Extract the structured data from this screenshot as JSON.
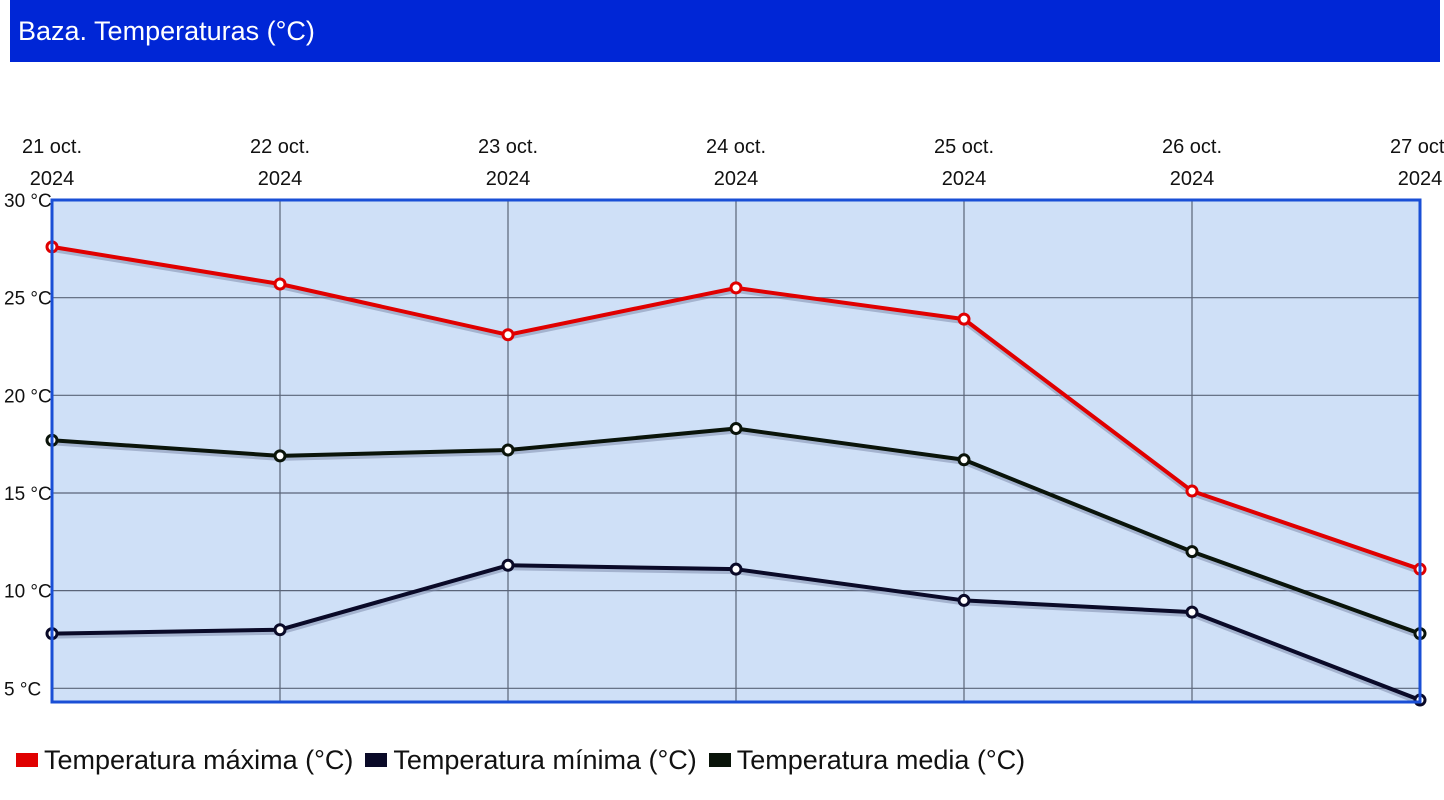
{
  "header": {
    "title": "Baza. Temperaturas (°C)"
  },
  "chart_data": {
    "type": "line",
    "title": "Baza. Temperaturas (°C)",
    "categories": [
      [
        "21 oct.",
        "2024"
      ],
      [
        "22 oct.",
        "2024"
      ],
      [
        "23 oct.",
        "2024"
      ],
      [
        "24 oct.",
        "2024"
      ],
      [
        "25 oct.",
        "2024"
      ],
      [
        "26 oct.",
        "2024"
      ],
      [
        "27 oct.",
        "2024"
      ]
    ],
    "y_ticks": [
      {
        "value": 5,
        "label": "5 °C"
      },
      {
        "value": 10,
        "label": "10 °C"
      },
      {
        "value": 15,
        "label": "15 °C"
      },
      {
        "value": 20,
        "label": "20 °C"
      },
      {
        "value": 25,
        "label": "25 °C"
      },
      {
        "value": 30,
        "label": "30 °C"
      }
    ],
    "ylim": [
      4.3,
      30
    ],
    "grid": true,
    "legend_position": "bottom-left",
    "series": [
      {
        "name": "Temperatura máxima (°C)",
        "color": "#e00000",
        "values": [
          27.6,
          25.7,
          23.1,
          25.5,
          23.9,
          15.1,
          11.1
        ]
      },
      {
        "name": "Temperatura mínima (°C)",
        "color": "#0a0a28",
        "values": [
          7.8,
          8.0,
          11.3,
          11.1,
          9.5,
          8.9,
          4.4
        ]
      },
      {
        "name": "Temperatura media (°C)",
        "color": "#0a140a",
        "values": [
          17.7,
          16.9,
          17.2,
          18.3,
          16.7,
          12.0,
          7.8
        ]
      }
    ],
    "plot_background": "#cfe0f7",
    "frame_color": "#1a4fd6"
  }
}
